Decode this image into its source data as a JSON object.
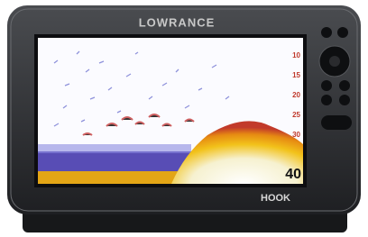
{
  "device": {
    "brand": "LOWRANCE",
    "model": "HOOK",
    "screen": {
      "depth_labels": [
        "10",
        "15",
        "20",
        "25",
        "30"
      ],
      "depth_readout": "40"
    }
  }
}
